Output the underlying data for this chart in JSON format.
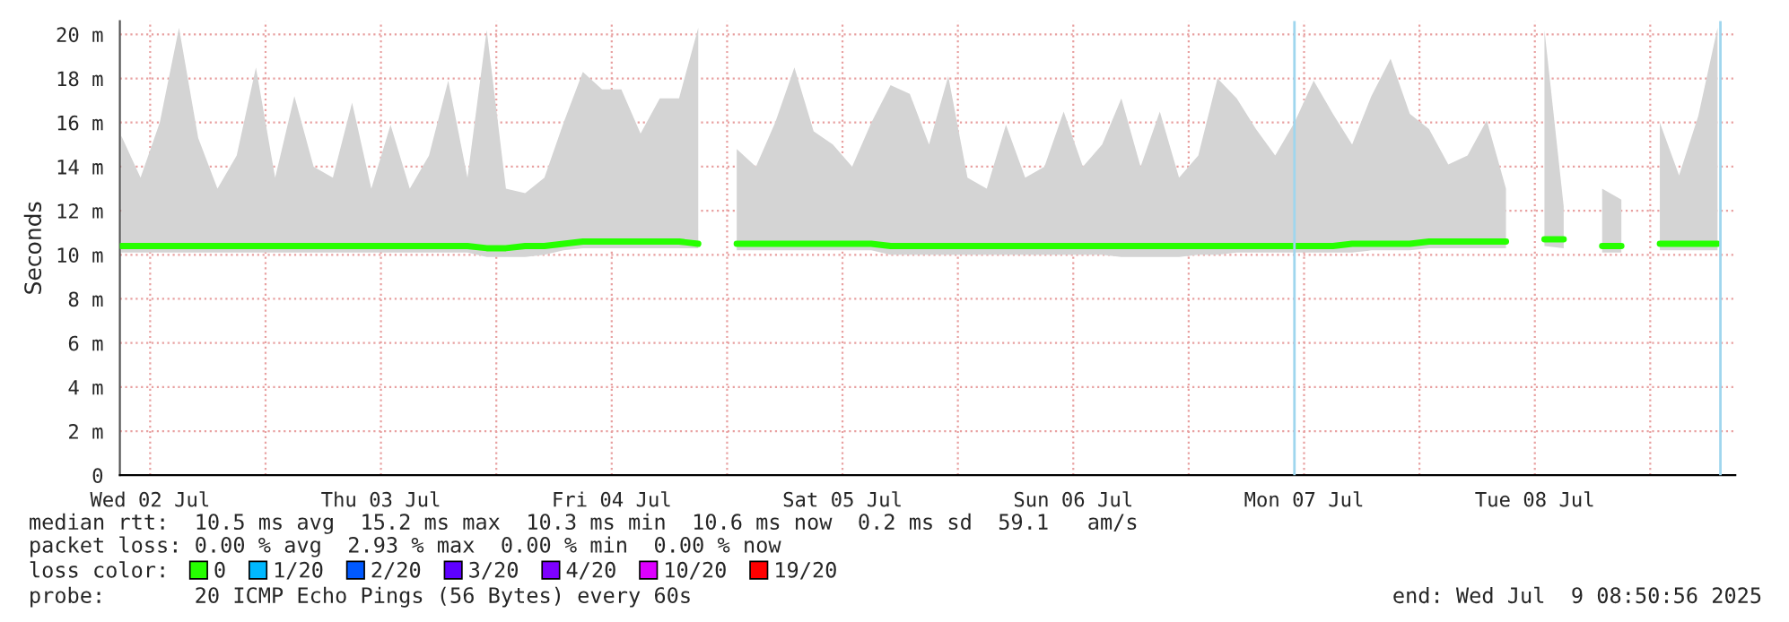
{
  "chart_data": {
    "type": "line",
    "ylabel": "Seconds",
    "x": [
      "2025-07-02T09:00",
      "2025-07-02T11:00",
      "2025-07-02T13:00",
      "2025-07-02T15:00",
      "2025-07-02T17:00",
      "2025-07-02T19:00",
      "2025-07-02T21:00",
      "2025-07-02T23:00",
      "2025-07-03T01:00",
      "2025-07-03T03:00",
      "2025-07-03T05:00",
      "2025-07-03T07:00",
      "2025-07-03T09:00",
      "2025-07-03T11:00",
      "2025-07-03T13:00",
      "2025-07-03T15:00",
      "2025-07-03T17:00",
      "2025-07-03T19:00",
      "2025-07-03T21:00",
      "2025-07-03T23:00",
      "2025-07-04T01:00",
      "2025-07-04T03:00",
      "2025-07-04T05:00",
      "2025-07-04T07:00",
      "2025-07-04T09:00",
      "2025-07-04T11:00",
      "2025-07-04T13:00",
      "2025-07-04T15:00",
      "2025-07-04T17:00",
      "2025-07-04T19:00",
      "2025-07-04T21:00",
      "2025-07-04T23:00",
      "2025-07-05T01:00",
      "2025-07-05T03:00",
      "2025-07-05T05:00",
      "2025-07-05T07:00",
      "2025-07-05T09:00",
      "2025-07-05T11:00",
      "2025-07-05T13:00",
      "2025-07-05T15:00",
      "2025-07-05T17:00",
      "2025-07-05T19:00",
      "2025-07-05T21:00",
      "2025-07-05T23:00",
      "2025-07-06T01:00",
      "2025-07-06T03:00",
      "2025-07-06T05:00",
      "2025-07-06T07:00",
      "2025-07-06T09:00",
      "2025-07-06T11:00",
      "2025-07-06T13:00",
      "2025-07-06T15:00",
      "2025-07-06T17:00",
      "2025-07-06T19:00",
      "2025-07-06T21:00",
      "2025-07-06T23:00",
      "2025-07-07T01:00",
      "2025-07-07T03:00",
      "2025-07-07T05:00",
      "2025-07-07T07:00",
      "2025-07-07T09:00",
      "2025-07-07T11:00",
      "2025-07-07T13:00",
      "2025-07-07T15:00",
      "2025-07-07T17:00",
      "2025-07-07T19:00",
      "2025-07-07T21:00",
      "2025-07-07T23:00",
      "2025-07-08T01:00",
      "2025-07-08T03:00",
      "2025-07-08T05:00",
      "2025-07-08T07:00",
      "2025-07-08T09:00",
      "2025-07-08T11:00",
      "2025-07-08T13:00",
      "2025-07-08T15:00",
      "2025-07-08T17:00",
      "2025-07-08T19:00",
      "2025-07-08T21:00",
      "2025-07-08T23:00",
      "2025-07-09T01:00",
      "2025-07-09T03:00",
      "2025-07-09T05:00",
      "2025-07-09T07:00"
    ],
    "series": [
      {
        "name": "0",
        "color": "#26ff00",
        "values": [
          10.4,
          10.4,
          10.4,
          10.4,
          10.4,
          10.4,
          10.4,
          10.4,
          10.4,
          10.4,
          10.4,
          10.4,
          10.4,
          10.4,
          10.4,
          10.4,
          10.4,
          10.4,
          10.4,
          10.3,
          10.3,
          10.4,
          10.4,
          10.5,
          10.6,
          10.6,
          10.6,
          10.6,
          10.6,
          10.6,
          10.5,
          null,
          10.5,
          10.5,
          10.5,
          10.5,
          10.5,
          10.5,
          10.5,
          10.5,
          10.4,
          10.4,
          10.4,
          10.4,
          10.4,
          10.4,
          10.4,
          10.4,
          10.4,
          10.4,
          10.4,
          10.4,
          10.4,
          10.4,
          10.4,
          10.4,
          10.4,
          10.4,
          10.4,
          10.4,
          10.4,
          10.4,
          10.4,
          10.4,
          10.5,
          10.5,
          10.5,
          10.5,
          10.6,
          10.6,
          10.6,
          10.6,
          10.6,
          null,
          10.7,
          10.7,
          null,
          10.4,
          10.4,
          null,
          10.5,
          10.5,
          10.5,
          10.5
        ],
        "lower": [
          10.1,
          10.1,
          10.1,
          10.1,
          10.1,
          10.1,
          10.1,
          10.1,
          10.1,
          10.1,
          10.1,
          10.1,
          10.1,
          10.1,
          10.1,
          10.1,
          10.1,
          10.1,
          10.1,
          9.9,
          9.9,
          9.9,
          10.0,
          10.2,
          10.3,
          10.3,
          10.3,
          10.3,
          10.3,
          10.3,
          10.3,
          null,
          10.2,
          10.2,
          10.2,
          10.2,
          10.2,
          10.2,
          10.2,
          10.2,
          10.0,
          10.0,
          10.0,
          10.0,
          10.0,
          10.0,
          10.0,
          10.0,
          10.0,
          10.0,
          10.0,
          10.0,
          9.9,
          9.9,
          9.9,
          9.9,
          10.0,
          10.0,
          10.1,
          10.1,
          10.1,
          10.1,
          10.1,
          10.1,
          10.1,
          10.2,
          10.2,
          10.2,
          10.3,
          10.3,
          10.3,
          10.3,
          10.3,
          null,
          10.4,
          10.3,
          null,
          10.1,
          10.1,
          null,
          10.2,
          10.2,
          10.2,
          10.2
        ],
        "upper": [
          15.4,
          13.5,
          16.0,
          20.3,
          15.3,
          13.0,
          14.5,
          18.5,
          13.5,
          17.2,
          14.0,
          13.5,
          16.9,
          13.0,
          15.9,
          13.0,
          14.5,
          17.9,
          13.5,
          20.2,
          13.0,
          12.8,
          13.5,
          16.0,
          18.3,
          17.5,
          17.5,
          15.5,
          17.1,
          17.1,
          20.3,
          null,
          14.8,
          14.0,
          16.0,
          18.5,
          15.6,
          15.0,
          14.0,
          16.0,
          17.7,
          17.3,
          15.0,
          18.1,
          13.5,
          13.0,
          15.9,
          13.5,
          14.0,
          16.5,
          14.0,
          15.0,
          17.1,
          14.0,
          16.5,
          13.5,
          14.5,
          18.0,
          17.1,
          15.7,
          14.5,
          16.0,
          17.9,
          16.4,
          15.0,
          17.2,
          18.9,
          16.4,
          15.7,
          14.1,
          14.5,
          16.1,
          13.0,
          null,
          20.2,
          12.2,
          null,
          13.0,
          12.5,
          null,
          16.0,
          13.6,
          16.3,
          20.3
        ]
      },
      {
        "name": "1/20",
        "color": "#00b8ff",
        "values": [
          null,
          null,
          null,
          null,
          null,
          null,
          null,
          null,
          null,
          null,
          null,
          null,
          null,
          null,
          null,
          null,
          null,
          null,
          null,
          null,
          null,
          null,
          null,
          null,
          null,
          null,
          null,
          null,
          null,
          null,
          null,
          null,
          null,
          null,
          null,
          null,
          null,
          null,
          null,
          null,
          null,
          null,
          null,
          null,
          null,
          null,
          null,
          null,
          null,
          null,
          null,
          null,
          null,
          null,
          null,
          null,
          null,
          null,
          null,
          null,
          null,
          null,
          null,
          null,
          null,
          null,
          null,
          null,
          null,
          null,
          null,
          null,
          null,
          null,
          null,
          null,
          null,
          null,
          null,
          null,
          null,
          null,
          null,
          null
        ]
      },
      {
        "name": "2/20",
        "color": "#0059ff",
        "values": [
          null,
          null,
          null,
          null,
          null,
          null,
          null,
          null,
          null,
          null,
          null,
          null,
          null,
          null,
          null,
          null,
          null,
          null,
          null,
          null,
          null,
          null,
          null,
          null,
          null,
          null,
          null,
          null,
          null,
          null,
          null,
          null,
          null,
          null,
          null,
          null,
          null,
          null,
          null,
          null,
          null,
          null,
          null,
          null,
          null,
          null,
          null,
          null,
          null,
          null,
          null,
          null,
          null,
          null,
          null,
          null,
          null,
          null,
          null,
          null,
          null,
          null,
          null,
          null,
          null,
          null,
          null,
          null,
          null,
          null,
          null,
          null,
          null,
          null,
          null,
          null,
          null,
          null,
          null,
          null,
          null,
          null,
          null,
          null
        ]
      },
      {
        "name": "3/20",
        "color": "#5e00ff",
        "values": [
          null,
          null,
          null,
          null,
          null,
          null,
          null,
          null,
          null,
          null,
          null,
          null,
          null,
          null,
          null,
          null,
          null,
          null,
          null,
          null,
          null,
          null,
          null,
          null,
          null,
          null,
          null,
          null,
          null,
          null,
          null,
          null,
          null,
          null,
          null,
          null,
          null,
          null,
          null,
          null,
          null,
          null,
          null,
          null,
          null,
          null,
          null,
          null,
          null,
          null,
          null,
          null,
          null,
          null,
          null,
          null,
          null,
          null,
          null,
          null,
          null,
          null,
          null,
          null,
          null,
          null,
          null,
          null,
          null,
          null,
          null,
          null,
          null,
          null,
          null,
          null,
          null,
          null,
          null,
          null,
          null,
          null,
          null,
          null
        ]
      },
      {
        "name": "4/20",
        "color": "#7e00ff",
        "values": [
          null,
          null,
          null,
          null,
          null,
          null,
          null,
          null,
          null,
          null,
          null,
          null,
          null,
          null,
          null,
          null,
          null,
          null,
          null,
          null,
          null,
          null,
          null,
          null,
          null,
          null,
          null,
          null,
          null,
          null,
          null,
          null,
          null,
          null,
          null,
          null,
          null,
          null,
          null,
          null,
          null,
          null,
          null,
          null,
          null,
          null,
          null,
          null,
          null,
          null,
          null,
          null,
          null,
          null,
          null,
          null,
          null,
          null,
          null,
          null,
          null,
          null,
          null,
          null,
          null,
          null,
          null,
          null,
          null,
          null,
          null,
          null,
          null,
          null,
          null,
          null,
          null,
          null,
          null,
          null,
          null,
          null,
          null,
          null
        ]
      },
      {
        "name": "10/20",
        "color": "#dd00ff",
        "values": [
          null,
          null,
          null,
          null,
          null,
          null,
          null,
          null,
          null,
          null,
          null,
          null,
          null,
          null,
          null,
          null,
          null,
          null,
          null,
          null,
          null,
          null,
          null,
          null,
          null,
          null,
          null,
          null,
          null,
          null,
          null,
          null,
          null,
          null,
          null,
          null,
          null,
          null,
          null,
          null,
          null,
          null,
          null,
          null,
          null,
          null,
          null,
          null,
          null,
          null,
          null,
          null,
          null,
          null,
          null,
          null,
          null,
          null,
          null,
          null,
          null,
          null,
          null,
          null,
          null,
          null,
          null,
          null,
          null,
          null,
          null,
          null,
          null,
          null,
          null,
          null,
          null,
          null,
          null,
          null,
          null,
          null,
          null,
          null
        ]
      },
      {
        "name": "19/20",
        "color": "#ff0000",
        "values": [
          null,
          null,
          null,
          null,
          null,
          null,
          null,
          null,
          null,
          null,
          null,
          null,
          null,
          null,
          null,
          null,
          null,
          null,
          null,
          null,
          null,
          null,
          null,
          null,
          null,
          null,
          null,
          null,
          null,
          null,
          null,
          null,
          null,
          null,
          null,
          null,
          null,
          null,
          null,
          null,
          null,
          null,
          null,
          null,
          null,
          null,
          null,
          null,
          null,
          null,
          null,
          null,
          null,
          null,
          null,
          null,
          null,
          null,
          null,
          null,
          null,
          null,
          null,
          null,
          null,
          null,
          null,
          null,
          null,
          null,
          null,
          null,
          null,
          null,
          null,
          null,
          null,
          null,
          null,
          null,
          null,
          null,
          null,
          null
        ]
      }
    ],
    "legend": "bottom",
    "legend_title": "loss color:",
    "xlim": [
      "2025-07-02T08:51",
      "2025-07-09T08:51"
    ],
    "xticks": [
      {
        "value": "2025-07-02T12:00",
        "label": "Wed 02 Jul"
      },
      {
        "value": "2025-07-03T00:00",
        "label": null
      },
      {
        "value": "2025-07-03T12:00",
        "label": "Thu 03 Jul"
      },
      {
        "value": "2025-07-04T00:00",
        "label": null
      },
      {
        "value": "2025-07-04T12:00",
        "label": "Fri 04 Jul"
      },
      {
        "value": "2025-07-05T00:00",
        "label": null
      },
      {
        "value": "2025-07-05T12:00",
        "label": "Sat 05 Jul"
      },
      {
        "value": "2025-07-06T00:00",
        "label": null
      },
      {
        "value": "2025-07-06T12:00",
        "label": "Sun 06 Jul"
      },
      {
        "value": "2025-07-07T00:00",
        "label": null
      },
      {
        "value": "2025-07-07T12:00",
        "label": "Mon 07 Jul"
      },
      {
        "value": "2025-07-08T00:00",
        "label": null
      },
      {
        "value": "2025-07-08T12:00",
        "label": "Tue 08 Jul"
      },
      {
        "value": "2025-07-09T00:00",
        "label": null
      }
    ],
    "ylim": [
      0,
      20.6
    ],
    "yticks": [
      0,
      {
        "value": 2,
        "label": "2 m"
      },
      {
        "value": 4,
        "label": "4 m"
      },
      {
        "value": 6,
        "label": "6 m"
      },
      {
        "value": 8,
        "label": "8 m"
      },
      {
        "value": 10,
        "label": "10 m"
      },
      {
        "value": 12,
        "label": "12 m"
      },
      {
        "value": 14,
        "label": "14 m"
      },
      {
        "value": 16,
        "label": "16 m"
      },
      {
        "value": 18,
        "label": "18 m"
      },
      {
        "value": 20,
        "label": "20 m"
      }
    ],
    "ref_lines": [
      {
        "axis": "x",
        "value": "2025-07-07T11:00",
        "color": "#9fd6ee"
      },
      {
        "axis": "x",
        "value": "2025-07-09T07:18",
        "color": "#9fd6ee"
      }
    ],
    "grid": true,
    "marker": "none",
    "line_style": "solid",
    "annotations": [
      "median rtt:  10.5 ms avg  15.2 ms max  10.3 ms min  10.6 ms now  0.2 ms sd  59.1   am/s",
      "packet loss: 0.00 % avg  2.93 % max  0.00 % min  0.00 % now",
      "probe:       20 ICMP Echo Pings (56 Bytes) every 60s",
      "end: Wed Jul  9 08:50:56 2025"
    ]
  }
}
